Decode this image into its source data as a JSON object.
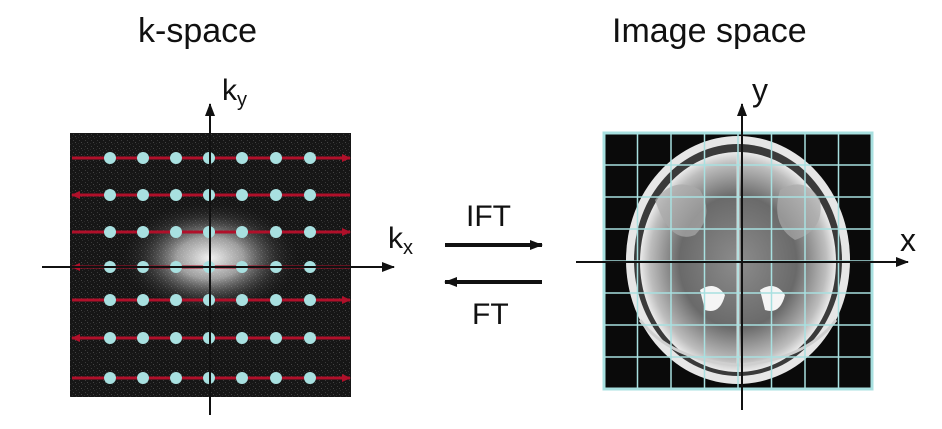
{
  "panels": {
    "kspace": {
      "title": "k-space",
      "y_axis": {
        "base": "k",
        "sub": "y"
      },
      "x_axis": {
        "base": "k",
        "sub": "x"
      }
    },
    "image": {
      "title": "Image space",
      "y_axis": "y",
      "x_axis": "x"
    }
  },
  "transforms": {
    "forward": "IFT",
    "backward": "FT"
  },
  "colors": {
    "kspace_background": "#1a1a1a",
    "trajectory_line": "#b0102a",
    "sample_dot": "#a8e0e0",
    "grid_line": "#a8e0e0",
    "axis": "#111111"
  },
  "kspace_grid": {
    "rows": 7,
    "cols": 7
  },
  "image_grid": {
    "rows": 8,
    "cols": 8
  }
}
